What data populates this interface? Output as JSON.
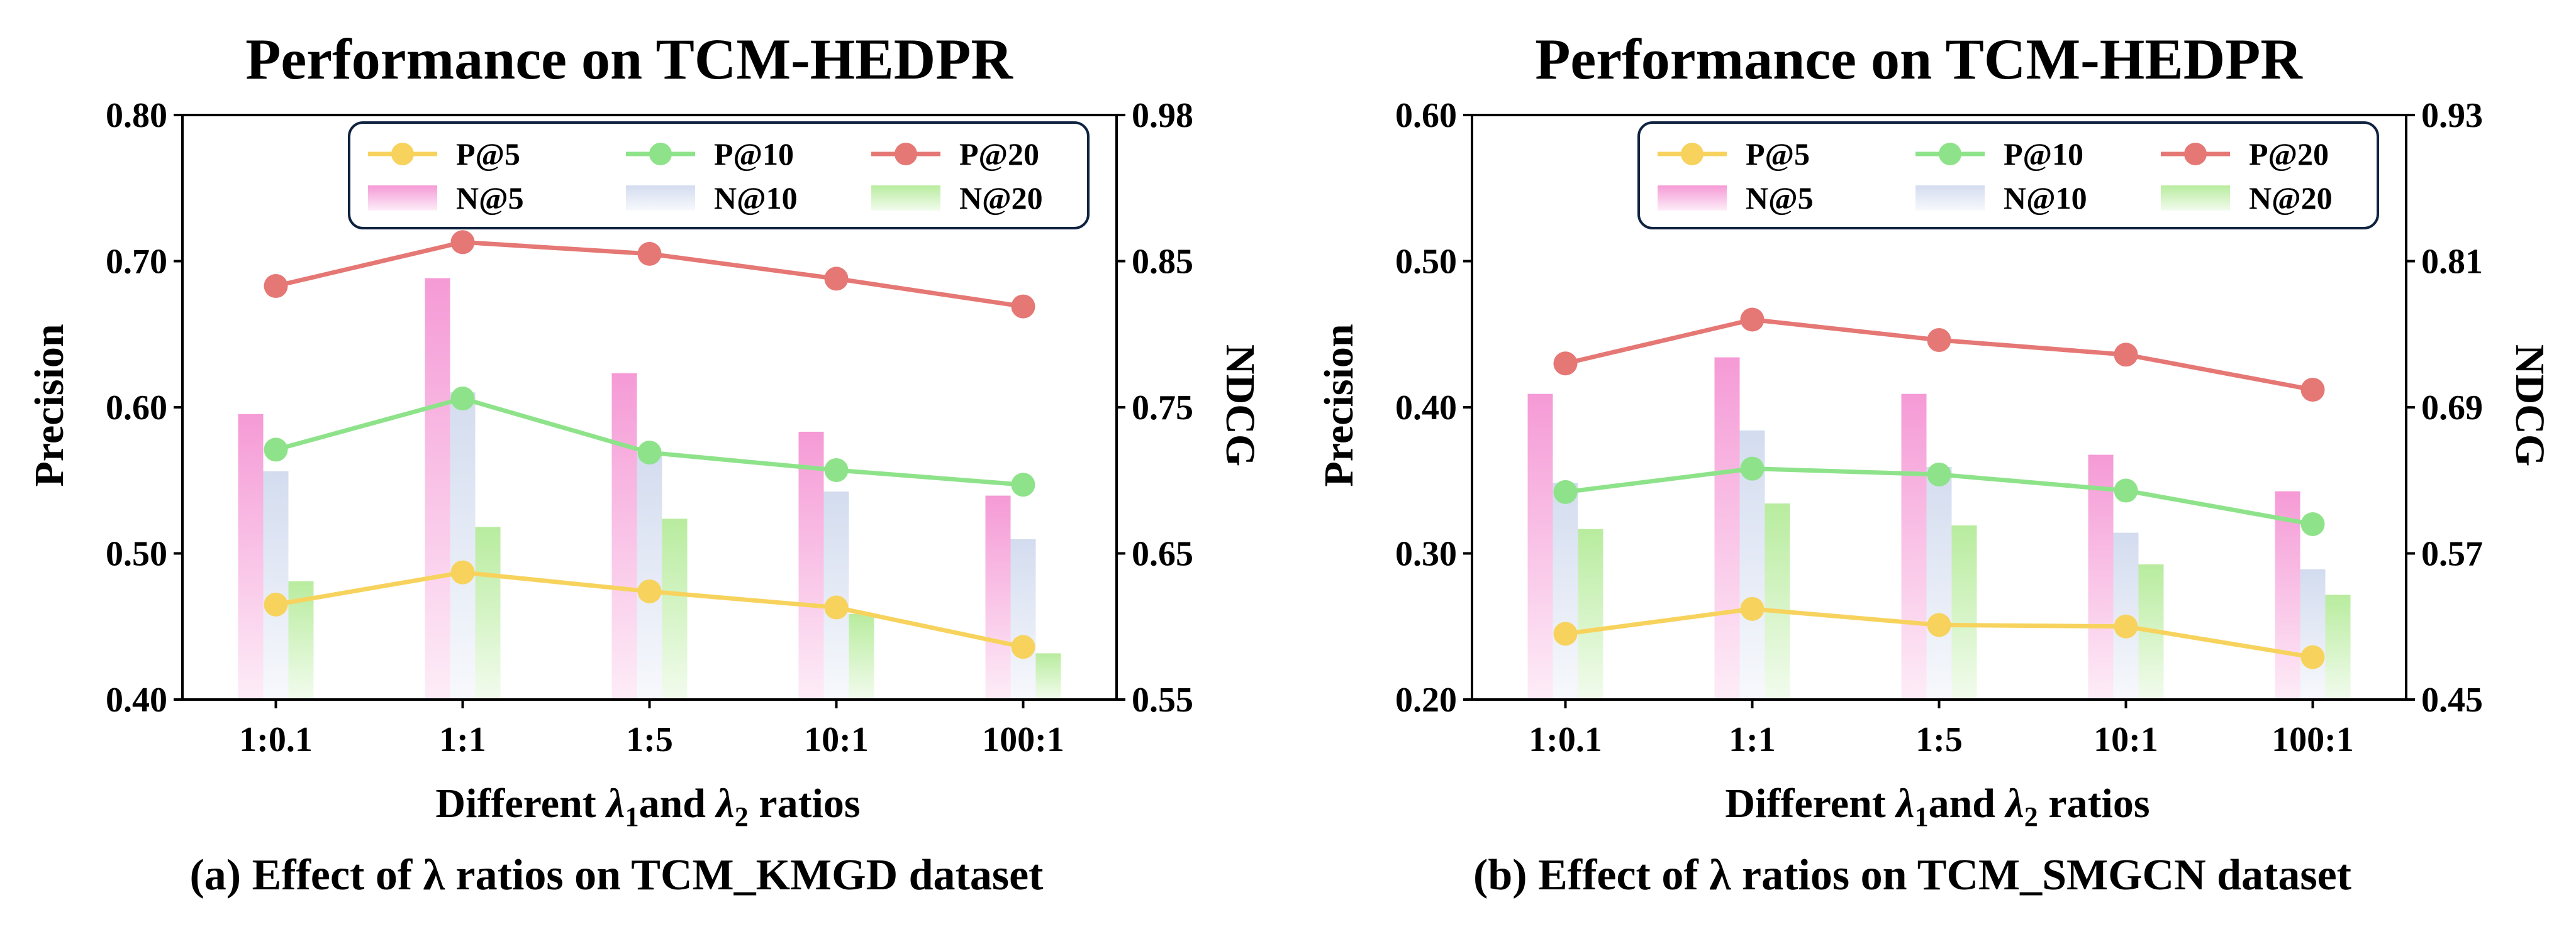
{
  "colors": {
    "p5": "#f7d35e",
    "p10": "#8ee38a",
    "p20": "#e57774",
    "n5": "#f59ad6",
    "n10": "#d3dcef",
    "n20": "#b8ec9e",
    "frame": "#0f2340"
  },
  "chart_data": [
    {
      "type": "bar+line",
      "title": "Performance on TCM-HEDPR",
      "caption": "(a) Effect of λ ratios on TCM_KMGD dataset",
      "xlabel": {
        "prefix": "Different ",
        "l1": "λ",
        "s1": "1",
        "mid": "and ",
        "l2": "λ",
        "s2": "2",
        "suffix": " ratios"
      },
      "ylabel": "Precision",
      "y2label": "NDCG",
      "categories": [
        "1:0.1",
        "1:1",
        "1:5",
        "10:1",
        "100:1"
      ],
      "ylim": [
        0.4,
        0.8
      ],
      "yticks": [
        "0.40",
        "0.50",
        "0.60",
        "0.70",
        "0.80"
      ],
      "y2lim": [
        0.55,
        0.98
      ],
      "y2ticks": [
        "0.55",
        "0.65",
        "0.75",
        "0.85",
        "0.98"
      ],
      "lines": [
        {
          "name": "P@5",
          "color_key": "p5",
          "values": [
            0.465,
            0.487,
            0.474,
            0.463,
            0.436
          ]
        },
        {
          "name": "P@10",
          "color_key": "p10",
          "values": [
            0.571,
            0.606,
            0.569,
            0.557,
            0.547
          ]
        },
        {
          "name": "P@20",
          "color_key": "p20",
          "values": [
            0.683,
            0.713,
            0.705,
            0.688,
            0.669
          ]
        }
      ],
      "bars": [
        {
          "name": "N@5",
          "color_key": "n5",
          "values": [
            0.76,
            0.86,
            0.79,
            0.747,
            0.7
          ]
        },
        {
          "name": "N@10",
          "color_key": "n10",
          "values": [
            0.718,
            0.776,
            0.732,
            0.703,
            0.668
          ]
        },
        {
          "name": "N@20",
          "color_key": "n20",
          "values": [
            0.637,
            0.677,
            0.683,
            0.613,
            0.584
          ]
        }
      ],
      "legend": {
        "placement": "top-right",
        "row1": [
          "P@5",
          "P@10",
          "P@20"
        ],
        "row2": [
          "N@5",
          "N@10",
          "N@20"
        ]
      }
    },
    {
      "type": "bar+line",
      "title": "Performance on TCM-HEDPR",
      "caption": "(b) Effect of λ ratios on TCM_SMGCN dataset",
      "xlabel": {
        "prefix": "Different ",
        "l1": "λ",
        "s1": "1",
        "mid": "and ",
        "l2": "λ",
        "s2": "2",
        "suffix": " ratios"
      },
      "ylabel": "Precision",
      "y2label": "NDCG",
      "categories": [
        "1:0.1",
        "1:1",
        "1:5",
        "10:1",
        "100:1"
      ],
      "ylim": [
        0.2,
        0.6
      ],
      "yticks": [
        "0.20",
        "0.30",
        "0.40",
        "0.50",
        "0.60"
      ],
      "y2lim": [
        0.45,
        0.93
      ],
      "y2ticks": [
        "0.45",
        "0.57",
        "0.69",
        "0.81",
        "0.93"
      ],
      "lines": [
        {
          "name": "P@5",
          "color_key": "p5",
          "values": [
            0.245,
            0.262,
            0.251,
            0.25,
            0.229
          ]
        },
        {
          "name": "P@10",
          "color_key": "p10",
          "values": [
            0.342,
            0.358,
            0.354,
            0.343,
            0.32
          ]
        },
        {
          "name": "P@20",
          "color_key": "p20",
          "values": [
            0.43,
            0.46,
            0.446,
            0.436,
            0.412
          ]
        }
      ],
      "bars": [
        {
          "name": "N@5",
          "color_key": "n5",
          "values": [
            0.701,
            0.731,
            0.701,
            0.651,
            0.621
          ]
        },
        {
          "name": "N@10",
          "color_key": "n10",
          "values": [
            0.628,
            0.671,
            0.641,
            0.587,
            0.557
          ]
        },
        {
          "name": "N@20",
          "color_key": "n20",
          "values": [
            0.59,
            0.611,
            0.593,
            0.561,
            0.536
          ]
        }
      ],
      "legend": {
        "placement": "top-right",
        "row1": [
          "P@5",
          "P@10",
          "P@20"
        ],
        "row2": [
          "N@5",
          "N@10",
          "N@20"
        ]
      }
    }
  ]
}
